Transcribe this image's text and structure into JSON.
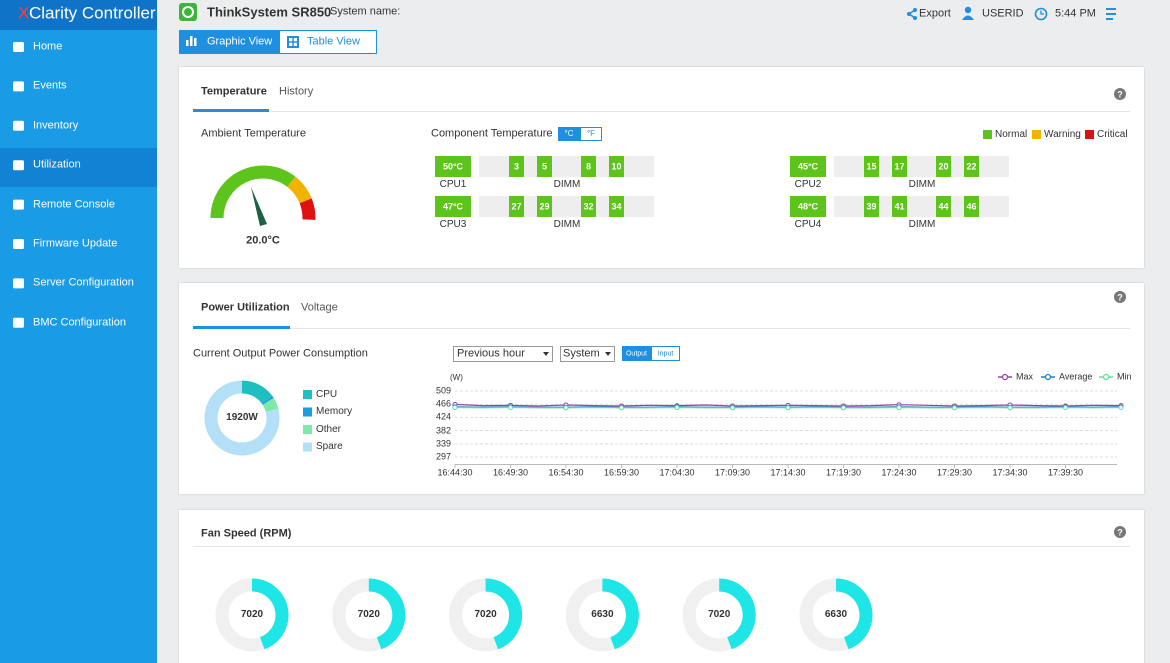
{
  "sidebar": {
    "brand_prefix": "X",
    "brand": "Clarity Controller",
    "menu": [
      "Home",
      "Events",
      "Inventory",
      "Utilization",
      "Remote Console",
      "Firmware Update",
      "Server Configuration",
      "BMC Configuration"
    ],
    "active": 3
  },
  "header": {
    "model": "ThinkSystem SR850",
    "system_name_label": "System name:",
    "export": "Export",
    "user": "USERID",
    "time": "5:44 PM",
    "views": [
      "Graphic View",
      "Table View"
    ]
  },
  "temperature_panel": {
    "tabs": [
      "Temperature",
      "History"
    ],
    "ambient_label": "Ambient Temperature",
    "ambient_value": "20.0°C",
    "component_label": "Component Temperature",
    "units": [
      "°C",
      "°F"
    ],
    "legend": [
      {
        "name": "Normal",
        "color": "#5cc41a"
      },
      {
        "name": "Warning",
        "color": "#f0b400"
      },
      {
        "name": "Critical",
        "color": "#e01010"
      }
    ],
    "components": [
      {
        "cpu": "CPU1",
        "temp": "50°C",
        "dimm_label": "DIMM",
        "dimms": [
          "3",
          "5",
          "8",
          "10"
        ]
      },
      {
        "cpu": "CPU2",
        "temp": "45°C",
        "dimm_label": "DIMM",
        "dimms": [
          "15",
          "17",
          "20",
          "22"
        ]
      },
      {
        "cpu": "CPU3",
        "temp": "47°C",
        "dimm_label": "DIMM",
        "dimms": [
          "27",
          "29",
          "32",
          "34"
        ]
      },
      {
        "cpu": "CPU4",
        "temp": "48°C",
        "dimm_label": "DIMM",
        "dimms": [
          "39",
          "41",
          "44",
          "46"
        ]
      }
    ]
  },
  "power_panel": {
    "tabs": [
      "Power Utilization",
      "Voltage"
    ],
    "consumption_label": "Current Output Power Consumption",
    "period": "Previous hour",
    "scope": "System",
    "modes": [
      "Output",
      "Input"
    ],
    "donut": {
      "center": "1920W",
      "segments": [
        {
          "name": "CPU",
          "color": "#1fbfbf",
          "value": 15
        },
        {
          "name": "Memory",
          "color": "#1a9ee2",
          "value": 1
        },
        {
          "name": "Other",
          "color": "#7ee8a8",
          "value": 5
        },
        {
          "name": "Spare",
          "color": "#b3e0f7",
          "value": 79
        }
      ]
    },
    "chart": {
      "type": "line",
      "y_unit": "(W)",
      "ylim": [
        297,
        509
      ],
      "yticks": [
        297,
        339,
        382,
        424,
        466,
        509
      ],
      "grid": true,
      "xticks": [
        "16:44:30",
        "16:49:30",
        "16:54:30",
        "16:59:30",
        "17:04:30",
        "17:09:30",
        "17:14:30",
        "17:19:30",
        "17:24:30",
        "17:29:30",
        "17:34:30",
        "17:39:30"
      ],
      "series": [
        {
          "name": "Max",
          "color": "#a040a0",
          "values": [
            466,
            462,
            463,
            461,
            464,
            462,
            461,
            463,
            462,
            464,
            461,
            462,
            463,
            462,
            461,
            462,
            465,
            463,
            461,
            462,
            464,
            462,
            461,
            463,
            462
          ]
        },
        {
          "name": "Average",
          "color": "#2080c0",
          "values": [
            458,
            457,
            458,
            457,
            457,
            458,
            457,
            457,
            458,
            457,
            457,
            458,
            457,
            458,
            457,
            457,
            458,
            457,
            457,
            458,
            457,
            457,
            458,
            457,
            458
          ]
        },
        {
          "name": "Min",
          "color": "#60e0a0",
          "values": [
            456,
            455,
            456,
            455,
            455,
            456,
            455,
            455,
            456,
            455,
            455,
            456,
            455,
            456,
            455,
            455,
            456,
            455,
            455,
            456,
            455,
            455,
            456,
            455,
            456
          ]
        }
      ]
    }
  },
  "fan_panel": {
    "title": "Fan Speed (RPM)",
    "fans": [
      7020,
      7020,
      7020,
      6630,
      7020,
      6630
    ]
  }
}
